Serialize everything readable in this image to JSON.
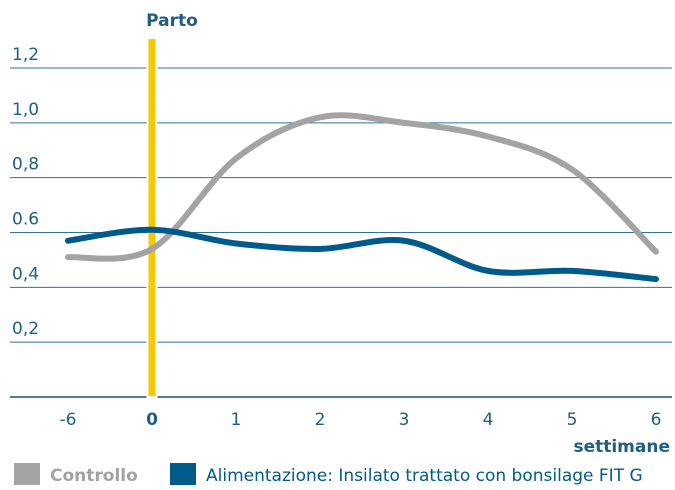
{
  "chart_data": {
    "type": "line",
    "annotations": [
      {
        "text": "Parto",
        "x": "0",
        "color": "#f5c800"
      }
    ],
    "x_label": "settimane",
    "categories": [
      "-6",
      "0",
      "1",
      "2",
      "3",
      "4",
      "5",
      "6"
    ],
    "series": [
      {
        "name": "Controllo",
        "color": "#a3a3a3",
        "values": [
          0.51,
          0.54,
          0.87,
          1.02,
          1.0,
          0.95,
          0.83,
          0.53
        ]
      },
      {
        "name": "Alimentazione: Insilato trattato con bonsilage FIT G",
        "color": "#005a8c",
        "values": [
          0.57,
          0.61,
          0.56,
          0.54,
          0.57,
          0.46,
          0.46,
          0.43
        ]
      }
    ],
    "ylim": [
      0,
      1.2
    ],
    "yticks": [
      {
        "value": 0.2,
        "label": "0,2"
      },
      {
        "value": 0.4,
        "label": "0,4"
      },
      0.6,
      {
        "value": 0.8,
        "label": "0,8"
      },
      {
        "value": 1.0,
        "label": "1,0"
      },
      {
        "value": 1.2,
        "label": "1,2"
      }
    ],
    "grid": true
  }
}
